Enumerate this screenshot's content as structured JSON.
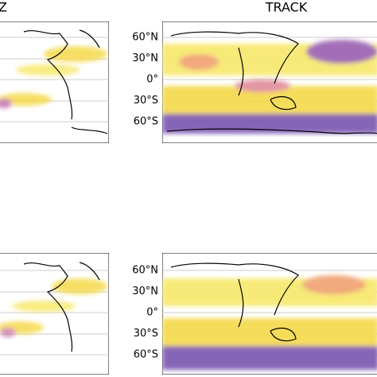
{
  "top_left": {
    "title": "Z"
  },
  "top_right": {
    "title": "TRACK",
    "lat_labels": [
      "60°N",
      "30°N",
      "0°",
      "30°S",
      "60°S"
    ]
  },
  "bottom_right": {
    "lat_labels": [
      "60°N",
      "30°N",
      "0°",
      "30°S",
      "60°S"
    ]
  }
}
